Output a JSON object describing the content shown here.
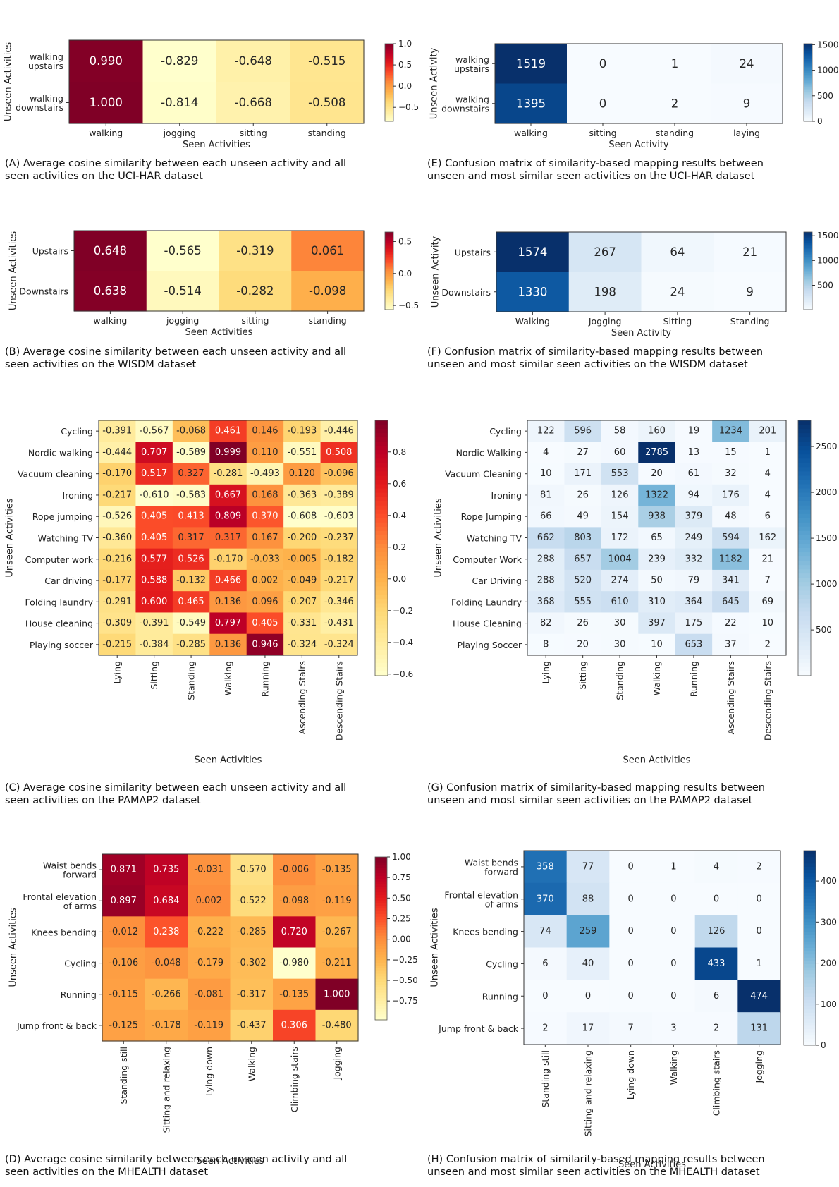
{
  "chart_data": [
    {
      "id": "A",
      "type": "heatmap",
      "colormap": "YlOrRd",
      "caption": [
        "(A) Average cosine similarity between each unseen activity and all",
        "seen activities on the UCI-HAR dataset"
      ],
      "xlabel": "Seen Activities",
      "ylabel": "Unseen Activities",
      "rows": [
        "walking\nupstairs",
        "walking\ndownstairs"
      ],
      "cols": [
        "walking",
        "jogging",
        "sitting",
        "standing"
      ],
      "values": [
        [
          0.99,
          -0.829,
          -0.648,
          -0.515
        ],
        [
          1.0,
          -0.814,
          -0.668,
          -0.508
        ]
      ],
      "labels": [
        [
          "0.990",
          "-0.829",
          "-0.648",
          "-0.515"
        ],
        [
          "1.000",
          "-0.814",
          "-0.668",
          "-0.508"
        ]
      ],
      "vmin": -0.829,
      "vmax": 1.0,
      "colorbar_ticks": [
        1.0,
        0.5,
        0.0,
        -0.5
      ],
      "colorbar_tick_labels": [
        "1.0",
        "0.5",
        "0.0",
        "−0.5"
      ]
    },
    {
      "id": "E",
      "type": "heatmap",
      "colormap": "Blues",
      "caption": [
        "(E) Confusion matrix of similarity-based mapping results between",
        "unseen and most similar seen activities on the UCI-HAR dataset"
      ],
      "xlabel": "Seen Activity",
      "ylabel": "Unseen Activity",
      "rows": [
        "walking\nupstairs",
        "walking\ndownstairs"
      ],
      "cols": [
        "walking",
        "sitting",
        "standing",
        "laying"
      ],
      "values": [
        [
          1519,
          0,
          1,
          24
        ],
        [
          1395,
          0,
          2,
          9
        ]
      ],
      "labels": [
        [
          "1519",
          "0",
          "1",
          "24"
        ],
        [
          "1395",
          "0",
          "2",
          "9"
        ]
      ],
      "vmin": 0,
      "vmax": 1519,
      "colorbar_ticks": [
        1500,
        1000,
        500,
        0
      ],
      "colorbar_tick_labels": [
        "1500",
        "1000",
        "500",
        "0"
      ]
    },
    {
      "id": "B",
      "type": "heatmap",
      "colormap": "YlOrRd",
      "caption": [
        "(B) Average cosine similarity between each unseen activity and all",
        "seen activities on the WISDM dataset"
      ],
      "xlabel": "Seen Activities",
      "ylabel": "Unseen Activities",
      "rows": [
        "Upstairs",
        "Downstairs"
      ],
      "cols": [
        "walking",
        "jogging",
        "sitting",
        "standing"
      ],
      "values": [
        [
          0.648,
          -0.565,
          -0.319,
          0.061
        ],
        [
          0.638,
          -0.514,
          -0.282,
          -0.098
        ]
      ],
      "labels": [
        [
          "0.648",
          "-0.565",
          "-0.319",
          "0.061"
        ],
        [
          "0.638",
          "-0.514",
          "-0.282",
          "-0.098"
        ]
      ],
      "vmin": -0.565,
      "vmax": 0.648,
      "colorbar_ticks": [
        0.5,
        0.0,
        -0.5
      ],
      "colorbar_tick_labels": [
        "0.5",
        "0.0",
        "−0.5"
      ]
    },
    {
      "id": "F",
      "type": "heatmap",
      "colormap": "Blues",
      "caption": [
        "(F) Confusion matrix of similarity-based mapping results between",
        "unseen and most similar seen activities on the WISDM dataset"
      ],
      "xlabel": "Seen Activity",
      "ylabel": "Unseen Activity",
      "rows": [
        "Upstairs",
        "Downstairs"
      ],
      "cols": [
        "Walking",
        "Jogging",
        "Sitting",
        "Standing"
      ],
      "values": [
        [
          1574,
          267,
          64,
          21
        ],
        [
          1330,
          198,
          24,
          9
        ]
      ],
      "labels": [
        [
          "1574",
          "267",
          "64",
          "21"
        ],
        [
          "1330",
          "198",
          "24",
          "9"
        ]
      ],
      "vmin": 9,
      "vmax": 1574,
      "colorbar_ticks": [
        1500,
        1000,
        500
      ],
      "colorbar_tick_labels": [
        "1500",
        "1000",
        "500"
      ]
    },
    {
      "id": "C",
      "type": "heatmap",
      "colormap": "YlOrRd",
      "caption": [
        "(C) Average cosine similarity between each unseen activity and all",
        "seen activities on the PAMAP2 dataset"
      ],
      "xlabel": "Seen Activities",
      "ylabel": "Unseen Activities",
      "rows": [
        "Cycling",
        "Nordic walking",
        "Vacuum cleaning",
        "Ironing",
        "Rope jumping",
        "Watching TV",
        "Computer work",
        "Car driving",
        "Folding laundry",
        "House cleaning",
        "Playing soccer"
      ],
      "cols": [
        "Lying",
        "Sitting",
        "Standing",
        "Walking",
        "Running",
        "Ascending Stairs",
        "Descending Stairs"
      ],
      "values": [
        [
          -0.391,
          -0.567,
          -0.068,
          0.461,
          0.146,
          -0.193,
          -0.446
        ],
        [
          -0.444,
          0.707,
          -0.589,
          0.999,
          0.11,
          -0.551,
          0.508
        ],
        [
          -0.17,
          0.517,
          0.327,
          -0.281,
          -0.493,
          0.12,
          -0.096
        ],
        [
          -0.217,
          -0.61,
          -0.583,
          0.667,
          0.168,
          -0.363,
          -0.389
        ],
        [
          -0.526,
          0.405,
          0.413,
          0.809,
          0.37,
          -0.608,
          -0.603
        ],
        [
          -0.36,
          0.405,
          0.317,
          0.317,
          0.167,
          -0.2,
          -0.237
        ],
        [
          -0.216,
          0.577,
          0.526,
          -0.17,
          -0.033,
          -0.005,
          -0.182
        ],
        [
          -0.177,
          0.588,
          -0.132,
          0.466,
          0.002,
          -0.049,
          -0.217
        ],
        [
          -0.291,
          0.6,
          0.465,
          0.136,
          0.096,
          -0.207,
          -0.346
        ],
        [
          -0.309,
          -0.391,
          -0.549,
          0.797,
          0.405,
          -0.331,
          -0.431
        ],
        [
          -0.215,
          -0.384,
          -0.285,
          0.136,
          0.946,
          -0.324,
          -0.324
        ]
      ],
      "labels": [
        [
          "-0.391",
          "-0.567",
          "-0.068",
          "0.461",
          "0.146",
          "-0.193",
          "-0.446"
        ],
        [
          "-0.444",
          "0.707",
          "-0.589",
          "0.999",
          "0.110",
          "-0.551",
          "0.508"
        ],
        [
          "-0.170",
          "0.517",
          "0.327",
          "-0.281",
          "-0.493",
          "0.120",
          "-0.096"
        ],
        [
          "-0.217",
          "-0.610",
          "-0.583",
          "0.667",
          "0.168",
          "-0.363",
          "-0.389"
        ],
        [
          "-0.526",
          "0.405",
          "0.413",
          "0.809",
          "0.370",
          "-0.608",
          "-0.603"
        ],
        [
          "-0.360",
          "0.405",
          "0.317",
          "0.317",
          "0.167",
          "-0.200",
          "-0.237"
        ],
        [
          "-0.216",
          "0.577",
          "0.526",
          "-0.170",
          "-0.033",
          "-0.005",
          "-0.182"
        ],
        [
          "-0.177",
          "0.588",
          "-0.132",
          "0.466",
          "0.002",
          "-0.049",
          "-0.217"
        ],
        [
          "-0.291",
          "0.600",
          "0.465",
          "0.136",
          "0.096",
          "-0.207",
          "-0.346"
        ],
        [
          "-0.309",
          "-0.391",
          "-0.549",
          "0.797",
          "0.405",
          "-0.331",
          "-0.431"
        ],
        [
          "-0.215",
          "-0.384",
          "-0.285",
          "0.136",
          "0.946",
          "-0.324",
          "-0.324"
        ]
      ],
      "vmin": -0.61,
      "vmax": 0.999,
      "colorbar_ticks": [
        0.8,
        0.6,
        0.4,
        0.2,
        0.0,
        -0.2,
        -0.4,
        -0.6
      ],
      "colorbar_tick_labels": [
        "0.8",
        "0.6",
        "0.4",
        "0.2",
        "0.0",
        "−0.2",
        "−0.4",
        "−0.6"
      ]
    },
    {
      "id": "G",
      "type": "heatmap",
      "colormap": "Blues",
      "caption": [
        "(G) Confusion matrix of similarity-based mapping results between",
        "unseen and most similar seen activities on the PAMAP2 dataset"
      ],
      "xlabel": "Seen Activities",
      "ylabel": "Unseen Activities",
      "rows": [
        "Cycling",
        "Nordic Walking",
        "Vacuum Cleaning",
        "Ironing",
        "Rope Jumping",
        "Watching TV",
        "Computer Work",
        "Car Driving",
        "Folding Laundry",
        "House Cleaning",
        "Playing Soccer"
      ],
      "cols": [
        "Lying",
        "Sitting",
        "Standing",
        "Walking",
        "Running",
        "Ascending Stairs",
        "Descending Stairs"
      ],
      "values": [
        [
          122,
          596,
          58,
          160,
          19,
          1234,
          201
        ],
        [
          4,
          27,
          60,
          2785,
          13,
          15,
          1
        ],
        [
          10,
          171,
          553,
          20,
          61,
          32,
          4
        ],
        [
          81,
          26,
          126,
          1322,
          94,
          176,
          4
        ],
        [
          66,
          49,
          154,
          938,
          379,
          48,
          6
        ],
        [
          662,
          803,
          172,
          65,
          249,
          594,
          162
        ],
        [
          288,
          657,
          1004,
          239,
          332,
          1182,
          21
        ],
        [
          288,
          520,
          274,
          50,
          79,
          341,
          7
        ],
        [
          368,
          555,
          610,
          310,
          364,
          645,
          69
        ],
        [
          82,
          26,
          30,
          397,
          175,
          22,
          10
        ],
        [
          8,
          20,
          30,
          10,
          653,
          37,
          2
        ]
      ],
      "labels": [
        [
          "122",
          "596",
          "58",
          "160",
          "19",
          "1234",
          "201"
        ],
        [
          "4",
          "27",
          "60",
          "2785",
          "13",
          "15",
          "1"
        ],
        [
          "10",
          "171",
          "553",
          "20",
          "61",
          "32",
          "4"
        ],
        [
          "81",
          "26",
          "126",
          "1322",
          "94",
          "176",
          "4"
        ],
        [
          "66",
          "49",
          "154",
          "938",
          "379",
          "48",
          "6"
        ],
        [
          "662",
          "803",
          "172",
          "65",
          "249",
          "594",
          "162"
        ],
        [
          "288",
          "657",
          "1004",
          "239",
          "332",
          "1182",
          "21"
        ],
        [
          "288",
          "520",
          "274",
          "50",
          "79",
          "341",
          "7"
        ],
        [
          "368",
          "555",
          "610",
          "310",
          "364",
          "645",
          "69"
        ],
        [
          "82",
          "26",
          "30",
          "397",
          "175",
          "22",
          "10"
        ],
        [
          "8",
          "20",
          "30",
          "10",
          "653",
          "37",
          "2"
        ]
      ],
      "vmin": 1,
      "vmax": 2785,
      "colorbar_ticks": [
        2500,
        2000,
        1500,
        1000,
        500
      ],
      "colorbar_tick_labels": [
        "2500",
        "2000",
        "1500",
        "1000",
        "500"
      ]
    },
    {
      "id": "D",
      "type": "heatmap",
      "colormap": "YlOrRd",
      "caption": [
        "(D) Average cosine similarity between each unseen activity and all",
        "seen activities on the MHEALTH dataset"
      ],
      "xlabel": "Seen Activities",
      "ylabel": "Unseen Activities",
      "rows": [
        "Waist bends\nforward",
        "Frontal elevation\nof arms",
        "Knees bending",
        "Cycling",
        "Running",
        "Jump front & back"
      ],
      "cols": [
        "Standing still",
        "Sitting and relaxing",
        "Lying down",
        "Walking",
        "Climbing stairs",
        "Jogging"
      ],
      "values": [
        [
          0.871,
          0.735,
          -0.031,
          -0.57,
          -0.006,
          -0.135
        ],
        [
          0.897,
          0.684,
          0.002,
          -0.522,
          -0.098,
          -0.119
        ],
        [
          -0.012,
          0.238,
          -0.222,
          -0.285,
          0.72,
          -0.267
        ],
        [
          -0.106,
          -0.048,
          -0.179,
          -0.302,
          -0.98,
          -0.211
        ],
        [
          -0.115,
          -0.266,
          -0.081,
          -0.317,
          -0.135,
          1.0
        ],
        [
          -0.125,
          -0.178,
          -0.119,
          -0.437,
          0.306,
          -0.48
        ]
      ],
      "labels": [
        [
          "0.871",
          "0.735",
          "-0.031",
          "-0.570",
          "-0.006",
          "-0.135"
        ],
        [
          "0.897",
          "0.684",
          "0.002",
          "-0.522",
          "-0.098",
          "-0.119"
        ],
        [
          "-0.012",
          "0.238",
          "-0.222",
          "-0.285",
          "0.720",
          "-0.267"
        ],
        [
          "-0.106",
          "-0.048",
          "-0.179",
          "-0.302",
          "-0.980",
          "-0.211"
        ],
        [
          "-0.115",
          "-0.266",
          "-0.081",
          "-0.317",
          "-0.135",
          "1.000"
        ],
        [
          "-0.125",
          "-0.178",
          "-0.119",
          "-0.437",
          "0.306",
          "-0.480"
        ]
      ],
      "vmin": -0.98,
      "vmax": 1.0,
      "colorbar_ticks": [
        1.0,
        0.75,
        0.5,
        0.25,
        0.0,
        -0.25,
        -0.5,
        -0.75
      ],
      "colorbar_tick_labels": [
        "1.00",
        "0.75",
        "0.50",
        "0.25",
        "0.00",
        "−0.25",
        "−0.50",
        "−0.75"
      ]
    },
    {
      "id": "H",
      "type": "heatmap",
      "colormap": "Blues",
      "caption": [
        "(H) Confusion matrix of similarity-based mapping results between",
        "unseen and most similar seen activities on the MHEALTH dataset"
      ],
      "xlabel": "Seen Activities",
      "ylabel": "Unseen Activities",
      "rows": [
        "Waist bends\nforward",
        "Frontal elevation\nof arms",
        "Knees bending",
        "Cycling",
        "Running",
        "Jump front & back"
      ],
      "cols": [
        "Standing still",
        "Sitting and relaxing",
        "Lying down",
        "Walking",
        "Climbing stairs",
        "Jogging"
      ],
      "values": [
        [
          358,
          77,
          0,
          1,
          4,
          2
        ],
        [
          370,
          88,
          0,
          0,
          0,
          0
        ],
        [
          74,
          259,
          0,
          0,
          126,
          0
        ],
        [
          6,
          40,
          0,
          0,
          433,
          1
        ],
        [
          0,
          0,
          0,
          0,
          6,
          474
        ],
        [
          2,
          17,
          7,
          3,
          2,
          131
        ]
      ],
      "labels": [
        [
          "358",
          "77",
          "0",
          "1",
          "4",
          "2"
        ],
        [
          "370",
          "88",
          "0",
          "0",
          "0",
          "0"
        ],
        [
          "74",
          "259",
          "0",
          "0",
          "126",
          "0"
        ],
        [
          "6",
          "40",
          "0",
          "0",
          "433",
          "1"
        ],
        [
          "0",
          "0",
          "0",
          "0",
          "6",
          "474"
        ],
        [
          "2",
          "17",
          "7",
          "3",
          "2",
          "131"
        ]
      ],
      "vmin": 0,
      "vmax": 474,
      "colorbar_ticks": [
        400,
        300,
        200,
        100,
        0
      ],
      "colorbar_tick_labels": [
        "400",
        "300",
        "200",
        "100",
        "0"
      ]
    }
  ]
}
